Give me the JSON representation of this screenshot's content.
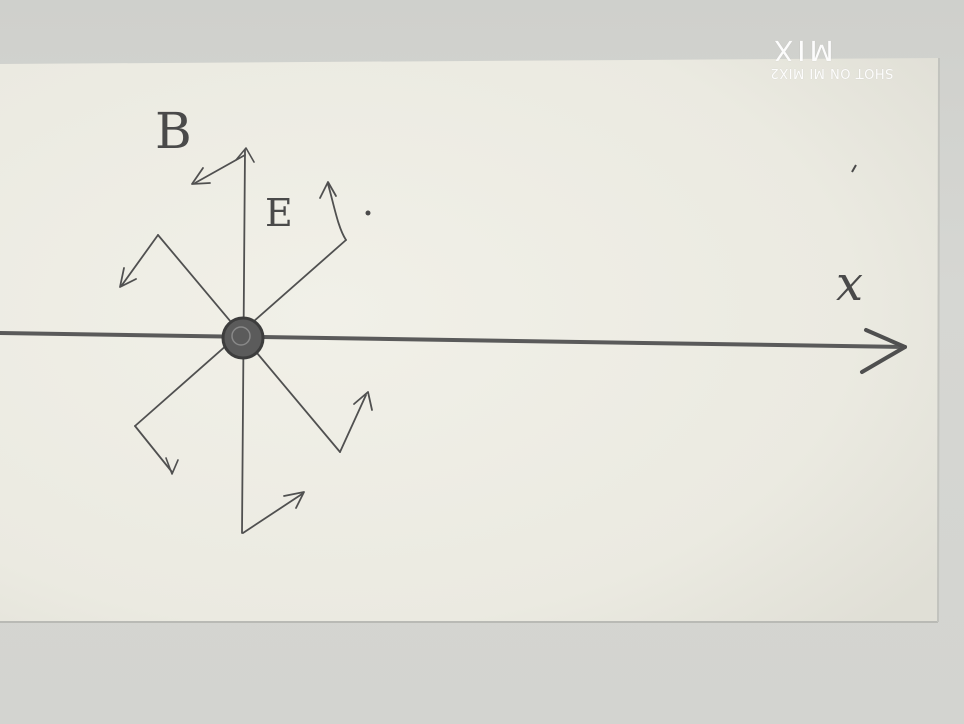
{
  "photo": {
    "subject": "pencil sketch on paper strip",
    "labels": {
      "magnetic_field": "B",
      "electric_field": "E",
      "axis": "x"
    },
    "colors": {
      "paper": "#ecebe2",
      "background": "#d4d5d1",
      "pencil": "#4a4a4a"
    }
  },
  "watermark": {
    "brand": "MIX",
    "caption": "SHOT ON MI MIX2"
  }
}
